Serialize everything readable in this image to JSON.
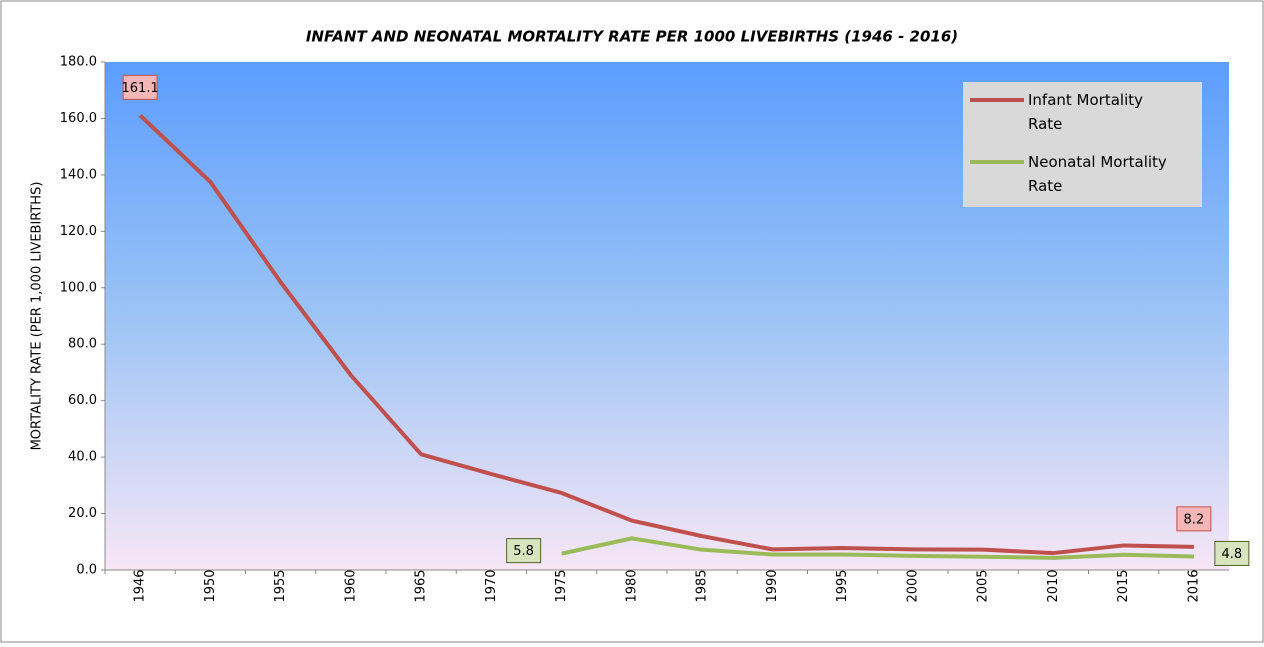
{
  "chart_data": {
    "type": "line",
    "title": "INFANT AND NEONATAL MORTALITY RATE PER 1000 LIVEBIRTHS (1946 - 2016)",
    "y_label": "MORTALITY RATE (PER 1,000 LIVEBIRTHS)",
    "categories": [
      "1946",
      "1950",
      "1955",
      "1960",
      "1965",
      "1970",
      "1975",
      "1980",
      "1985",
      "1990",
      "1995",
      "2000",
      "2005",
      "2010",
      "2015",
      "2016"
    ],
    "series": [
      {
        "name": "Infant Mortality Rate",
        "color": "#c0504d",
        "values": [
          161.1,
          137.5,
          102,
          69,
          41,
          34,
          27.3,
          17.5,
          12,
          7.3,
          7.8,
          7.3,
          7.2,
          6,
          8.7,
          8.2
        ],
        "value_labels": [
          "161.1",
          null,
          null,
          null,
          null,
          null,
          null,
          null,
          null,
          null,
          null,
          null,
          null,
          null,
          null,
          "8.2"
        ]
      },
      {
        "name": "Neonatal Mortality Rate",
        "color": "#9bbb59",
        "values": [
          null,
          null,
          null,
          null,
          null,
          null,
          5.8,
          11.2,
          7.2,
          5.5,
          5.5,
          5,
          4.7,
          4.3,
          5.4,
          4.8
        ],
        "value_labels": [
          null,
          null,
          null,
          null,
          null,
          null,
          "5.8",
          null,
          null,
          null,
          null,
          null,
          null,
          null,
          null,
          "4.8"
        ]
      }
    ],
    "ylim": [
      0,
      180
    ],
    "yticks": [
      {
        "value": 0,
        "label": "0.0"
      },
      {
        "value": 20,
        "label": "20.0"
      },
      {
        "value": 40,
        "label": "40.0"
      },
      {
        "value": 60,
        "label": "60.0"
      },
      {
        "value": 80,
        "label": "80.0"
      },
      {
        "value": 100,
        "label": "100.0"
      },
      {
        "value": 120,
        "label": "120.0"
      },
      {
        "value": 140,
        "label": "140.0"
      },
      {
        "value": 160,
        "label": "160.0"
      },
      {
        "value": 180,
        "label": "180.0"
      }
    ],
    "legend": "upper right"
  }
}
